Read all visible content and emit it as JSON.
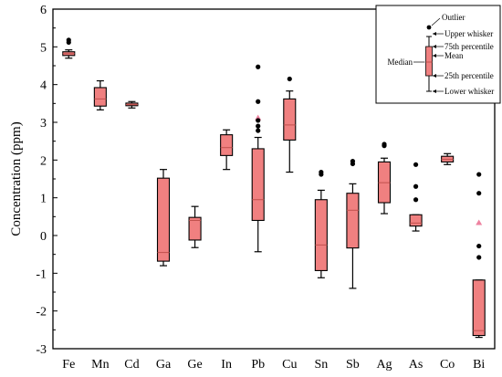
{
  "chart_data": {
    "type": "box",
    "title": "",
    "xlabel": "",
    "ylabel": "Concentration (ppm)",
    "ylim": [
      -3,
      6
    ],
    "yticks": [
      -3,
      -2,
      -1,
      0,
      1,
      2,
      3,
      4,
      5,
      6
    ],
    "grid": false,
    "box_color": "#f08080",
    "mean_color": "#ee82a0",
    "outlier_color": "#000000",
    "categories": [
      "Fe",
      "Mn",
      "Cd",
      "Ga",
      "Ge",
      "In",
      "Pb",
      "Cu",
      "Sn",
      "Sb",
      "Ag",
      "As",
      "Co",
      "Bi"
    ],
    "boxes": [
      {
        "name": "Fe",
        "whislo": 4.7,
        "q1": 4.77,
        "median": 4.82,
        "q3": 4.87,
        "whishi": 4.92,
        "outliers": [
          5.12,
          5.18
        ],
        "mean": null
      },
      {
        "name": "Mn",
        "whislo": 3.33,
        "q1": 3.43,
        "median": 3.62,
        "q3": 3.92,
        "whishi": 4.1,
        "outliers": [],
        "mean": null
      },
      {
        "name": "Cd",
        "whislo": 3.38,
        "q1": 3.44,
        "median": 3.47,
        "q3": 3.51,
        "whishi": 3.55,
        "outliers": [],
        "mean": null
      },
      {
        "name": "Ga",
        "whislo": -0.8,
        "q1": -0.68,
        "median": -0.45,
        "q3": 1.52,
        "whishi": 1.75,
        "outliers": [],
        "mean": null
      },
      {
        "name": "Ge",
        "whislo": -0.32,
        "q1": -0.12,
        "median": 0.4,
        "q3": 0.48,
        "whishi": 0.77,
        "outliers": [],
        "mean": null
      },
      {
        "name": "In",
        "whislo": 1.75,
        "q1": 2.12,
        "median": 2.33,
        "q3": 2.67,
        "whishi": 2.8,
        "outliers": [],
        "mean": null
      },
      {
        "name": "Pb",
        "whislo": -0.43,
        "q1": 0.4,
        "median": 0.95,
        "q3": 2.3,
        "whishi": 2.6,
        "outliers": [
          2.78,
          2.9,
          3.05,
          3.55,
          4.47
        ],
        "mean": 3.13
      },
      {
        "name": "Cu",
        "whislo": 1.68,
        "q1": 2.53,
        "median": 2.93,
        "q3": 3.62,
        "whishi": 3.83,
        "outliers": [
          4.15
        ],
        "mean": null
      },
      {
        "name": "Sn",
        "whislo": -1.12,
        "q1": -0.93,
        "median": -0.25,
        "q3": 0.95,
        "whishi": 1.2,
        "outliers": [
          1.62,
          1.68
        ],
        "mean": null
      },
      {
        "name": "Sb",
        "whislo": -1.4,
        "q1": -0.33,
        "median": 0.67,
        "q3": 1.12,
        "whishi": 1.37,
        "outliers": [
          1.9,
          1.97
        ],
        "mean": null
      },
      {
        "name": "Ag",
        "whislo": 0.58,
        "q1": 0.87,
        "median": 1.4,
        "q3": 1.95,
        "whishi": 2.05,
        "outliers": [
          2.38,
          2.42
        ],
        "mean": null
      },
      {
        "name": "As",
        "whislo": 0.12,
        "q1": 0.25,
        "median": 0.33,
        "q3": 0.55,
        "whishi": 0.55,
        "outliers": [
          0.95,
          1.3,
          1.88
        ],
        "mean": null
      },
      {
        "name": "Co",
        "whislo": 1.88,
        "q1": 1.95,
        "median": 2.02,
        "q3": 2.1,
        "whishi": 2.17,
        "outliers": [],
        "mean": null
      },
      {
        "name": "Bi",
        "whislo": -2.7,
        "q1": -2.65,
        "median": -2.52,
        "q3": -1.18,
        "whishi": -1.18,
        "outliers": [
          -0.58,
          -0.28,
          1.12,
          1.62
        ],
        "mean": 0.35
      }
    ],
    "legend": {
      "position": "top-right",
      "labels": {
        "outlier": "Outlier",
        "upper_whisker": "Upper whisker",
        "p75": "75th percentile",
        "mean": "Mean",
        "median": "Median",
        "p25": "25th percentile",
        "lower_whisker": "Lower whisker"
      }
    }
  }
}
